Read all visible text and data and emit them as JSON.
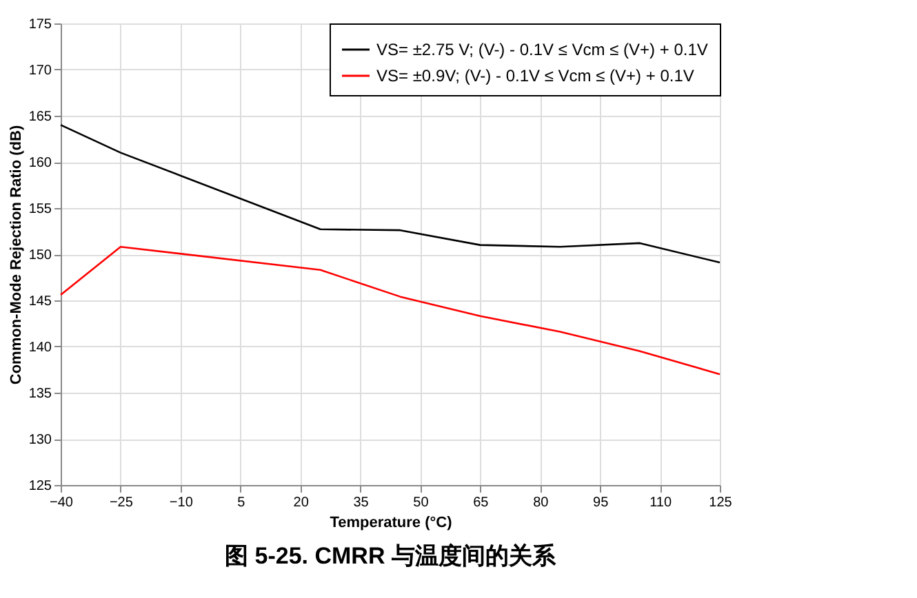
{
  "chart_data": {
    "type": "line",
    "title": "图 5-25. CMRR 与温度间的关系",
    "xlabel": "Temperature (°C)",
    "ylabel": "Common-Mode Rejection Ratio (dB)",
    "x": [
      -40,
      -25,
      25,
      45,
      65,
      85,
      105,
      125
    ],
    "series": [
      {
        "name": "VS= ±2.75 V; (V-) - 0.1V ≤ Vcm ≤ (V+) + 0.1V",
        "color": "#000000",
        "values": [
          164,
          161,
          152.7,
          152.6,
          151,
          150.8,
          151.2,
          149.1
        ]
      },
      {
        "name": "VS= ±0.9V; (V-) - 0.1V ≤ Vcm ≤ (V+) + 0.1V",
        "color": "#ff0000",
        "values": [
          145.6,
          150.8,
          148.3,
          145.4,
          143.3,
          141.6,
          139.5,
          137
        ]
      }
    ],
    "xlim": [
      -40,
      125
    ],
    "xticks": [
      -40,
      -25,
      -10,
      5,
      20,
      35,
      50,
      65,
      80,
      95,
      110,
      125
    ],
    "ylim": [
      125,
      175
    ],
    "yticks": [
      125,
      130,
      135,
      140,
      145,
      150,
      155,
      160,
      165,
      170,
      175
    ],
    "grid": true,
    "legend": "top right",
    "marker": "none",
    "line_style": "solid"
  }
}
